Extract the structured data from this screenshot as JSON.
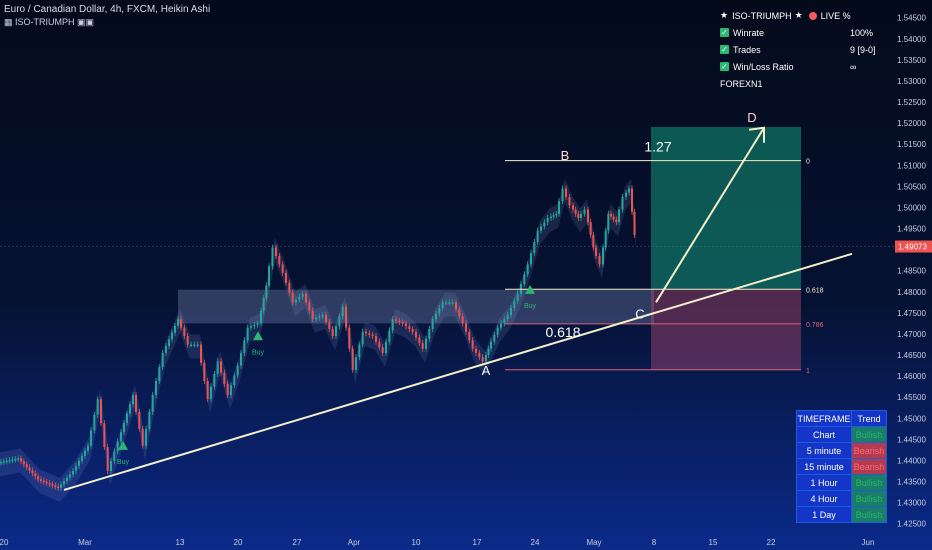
{
  "header": {
    "title": "Euro / Canadian Dollar, 4h, FXCM, Heikin Ashi",
    "indicator": "ISO-TRIUMPH"
  },
  "stats_panel": {
    "title": "ISO-TRIUMPH",
    "live_label": "LIVE %",
    "rows": [
      {
        "label": "Winrate",
        "value": "100%"
      },
      {
        "label": "Trades",
        "value": "9 [9-0]"
      },
      {
        "label": "Win/Loss Ratio",
        "value": "∞"
      }
    ],
    "footer": "FOREXN1"
  },
  "trend_table": {
    "headers": [
      "TIMEFRAME",
      "Trend"
    ],
    "rows": [
      {
        "tf": "Chart",
        "trend": "Bullish",
        "state": "bull"
      },
      {
        "tf": "5 minute",
        "trend": "Bearish",
        "state": "bear"
      },
      {
        "tf": "15 minute",
        "trend": "Bearish",
        "state": "bear"
      },
      {
        "tf": "1 Hour",
        "trend": "Bullish",
        "state": "bull"
      },
      {
        "tf": "4 Hour",
        "trend": "Bullish",
        "state": "bull"
      },
      {
        "tf": "1 Day",
        "trend": "Bullish",
        "state": "bull"
      }
    ]
  },
  "chart_data": {
    "type": "line",
    "xlabel": "",
    "ylabel": "",
    "ylim": [
      1.42421,
      1.54541
    ],
    "y_ticks": [
      1.545,
      1.54,
      1.535,
      1.53,
      1.525,
      1.52,
      1.515,
      1.51,
      1.505,
      1.5,
      1.495,
      1.49,
      1.485,
      1.48,
      1.475,
      1.47,
      1.465,
      1.46,
      1.455,
      1.45,
      1.445,
      1.44,
      1.435,
      1.43,
      1.425
    ],
    "y_tick_labels": [
      "1.54500",
      "1.54000",
      "1.53500",
      "1.53000",
      "1.52500",
      "1.52000",
      "1.51500",
      "1.51000",
      "1.50500",
      "1.50000",
      "1.49500",
      "1.49000",
      "1.48500",
      "1.48000",
      "1.47500",
      "1.47000",
      "1.46500",
      "1.46000",
      "1.45500",
      "1.45000",
      "1.44500",
      "1.44000",
      "1.43500",
      "1.43000",
      "1.42500"
    ],
    "x_labels": [
      "20",
      "Mar",
      "13",
      "20",
      "27",
      "Apr",
      "10",
      "17",
      "24",
      "May",
      "8",
      "15",
      "22",
      "Jun"
    ],
    "current_price": "1.49073",
    "price_series": [
      [
        0,
        1.4395
      ],
      [
        20,
        1.4405
      ],
      [
        40,
        1.4355
      ],
      [
        60,
        1.4335
      ],
      [
        75,
        1.4375
      ],
      [
        90,
        1.4435
      ],
      [
        100,
        1.4545
      ],
      [
        110,
        1.4375
      ],
      [
        120,
        1.4445
      ],
      [
        135,
        1.4555
      ],
      [
        145,
        1.4435
      ],
      [
        155,
        1.4555
      ],
      [
        165,
        1.4655
      ],
      [
        180,
        1.4735
      ],
      [
        190,
        1.4675
      ],
      [
        200,
        1.4675
      ],
      [
        210,
        1.4545
      ],
      [
        220,
        1.4635
      ],
      [
        230,
        1.4555
      ],
      [
        240,
        1.4625
      ],
      [
        250,
        1.4715
      ],
      [
        260,
        1.4725
      ],
      [
        268,
        1.4815
      ],
      [
        275,
        1.4905
      ],
      [
        285,
        1.4845
      ],
      [
        295,
        1.4775
      ],
      [
        305,
        1.4795
      ],
      [
        315,
        1.4735
      ],
      [
        325,
        1.4745
      ],
      [
        335,
        1.4695
      ],
      [
        345,
        1.4765
      ],
      [
        355,
        1.4615
      ],
      [
        365,
        1.4705
      ],
      [
        375,
        1.4695
      ],
      [
        385,
        1.4655
      ],
      [
        395,
        1.4735
      ],
      [
        405,
        1.4725
      ],
      [
        415,
        1.4705
      ],
      [
        425,
        1.4665
      ],
      [
        435,
        1.4735
      ],
      [
        445,
        1.4775
      ],
      [
        455,
        1.4775
      ],
      [
        465,
        1.4725
      ],
      [
        475,
        1.4665
      ],
      [
        485,
        1.4635
      ],
      [
        490,
        1.4665
      ],
      [
        500,
        1.4715
      ],
      [
        510,
        1.4745
      ],
      [
        520,
        1.4795
      ],
      [
        530,
        1.4865
      ],
      [
        540,
        1.4945
      ],
      [
        550,
        1.4975
      ],
      [
        558,
        1.4985
      ],
      [
        565,
        1.5045
      ],
      [
        572,
        1.5005
      ],
      [
        580,
        1.4975
      ],
      [
        587,
        1.4995
      ],
      [
        595,
        1.4905
      ],
      [
        602,
        1.4865
      ],
      [
        610,
        1.4985
      ],
      [
        618,
        1.4965
      ],
      [
        625,
        1.5025
      ],
      [
        631,
        1.5045
      ],
      [
        636,
        1.4935
      ]
    ],
    "fib_levels": [
      {
        "label": "0",
        "value": 1.5111
      },
      {
        "label": "0.618",
        "value": 1.4806
      },
      {
        "label": "0.786",
        "value": 1.4724
      },
      {
        "label": "1",
        "value": 1.4615
      }
    ],
    "annotations": [
      {
        "label": "A",
        "value": 1.4615
      },
      {
        "label": "B",
        "value": 1.5124
      },
      {
        "label": "C",
        "value": 1.4748
      },
      {
        "label": "D",
        "value": 1.5214
      },
      {
        "label": "1.27",
        "value": 1.5145
      },
      {
        "label": "0.618",
        "value": 1.4705
      }
    ],
    "buy_signals": [
      {
        "label": "Buy",
        "value": 1.4425
      },
      {
        "label": "Buy",
        "value": 1.4685
      },
      {
        "label": "Buy",
        "value": 1.4795
      }
    ],
    "trendline": [
      [
        1.433
      ],
      [
        1.489
      ]
    ],
    "target_zone": {
      "top": 1.5191,
      "entry": 1.4806,
      "stop": 1.4615
    },
    "zone_box": {
      "top": 1.4805,
      "bottom": 1.4725
    }
  }
}
